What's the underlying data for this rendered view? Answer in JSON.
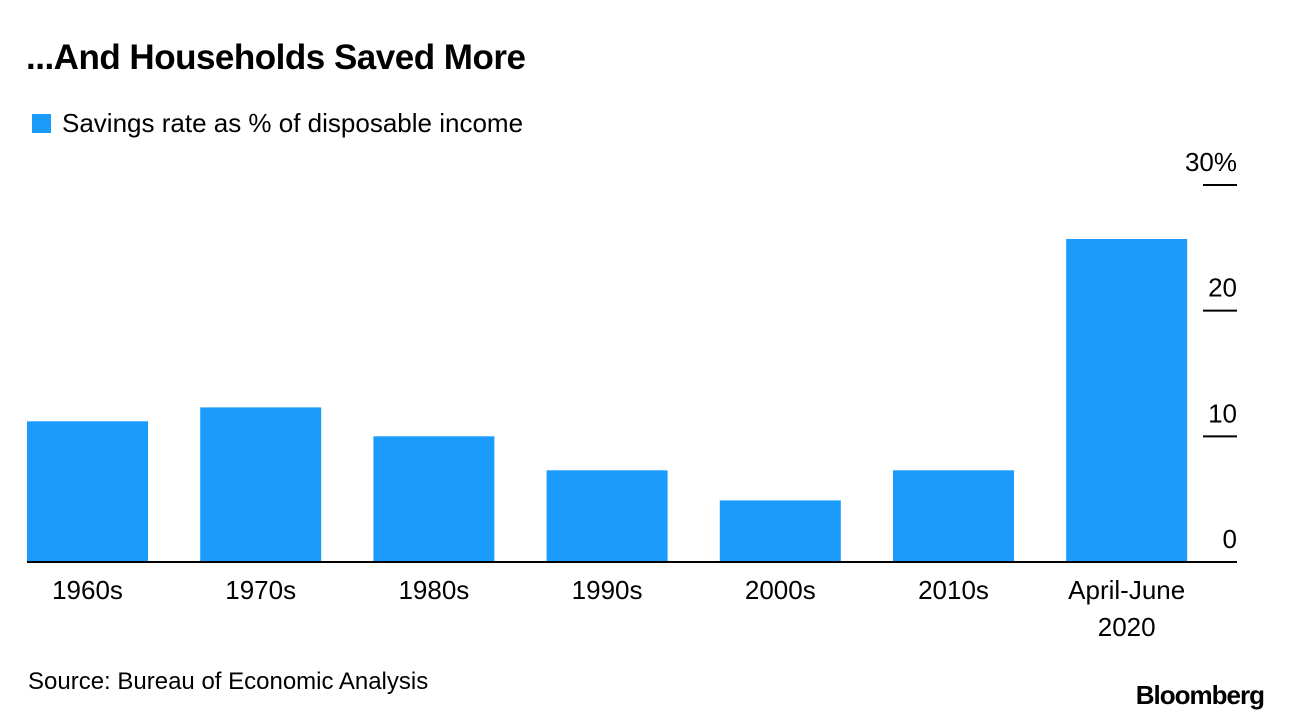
{
  "colors": {
    "bar": "#1b9cfc",
    "axis": "#000000",
    "background": "#ffffff"
  },
  "chart_data": {
    "type": "bar",
    "title": "...And Households Saved More",
    "categories": [
      "1960s",
      "1970s",
      "1980s",
      "1990s",
      "2000s",
      "2010s",
      "April-June 2020"
    ],
    "series": [
      {
        "name": "Savings rate as % of disposable income",
        "values": [
          11.2,
          12.3,
          10.0,
          7.3,
          4.9,
          7.3,
          25.7
        ]
      }
    ],
    "ylim": [
      0,
      30
    ],
    "yticks": [
      {
        "value": 0,
        "label": "0"
      },
      {
        "value": 10,
        "label": "10"
      },
      {
        "value": 20,
        "label": "20"
      },
      {
        "value": 30,
        "label": "30%"
      }
    ],
    "y_axis_side": "right",
    "legend_position": "top-left",
    "xlabel": "",
    "ylabel": "",
    "grid": false
  },
  "footer": {
    "source": "Source: Bureau of Economic Analysis",
    "brand": "Bloomberg"
  }
}
